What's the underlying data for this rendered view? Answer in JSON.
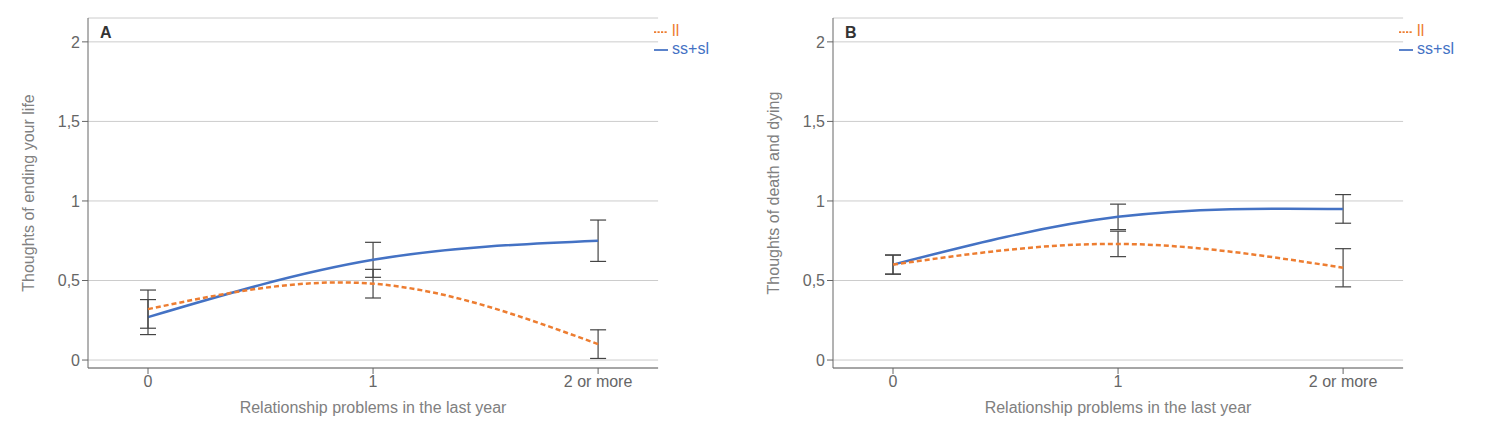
{
  "chart_data": [
    {
      "type": "line",
      "title": "A",
      "xlabel": "Relationship problems in the last year",
      "ylabel": "Thoughts of ending your life",
      "categories": [
        "0",
        "1",
        "2 or more"
      ],
      "ylim": [
        -0.05,
        2.15
      ],
      "yticks": [
        0,
        {
          "value": 0.5,
          "label": "0,5"
        },
        1,
        {
          "value": 1.5,
          "label": "1,5"
        },
        2
      ],
      "grid": true,
      "legend": "upper right",
      "series": [
        {
          "name": "ss+sl",
          "color": "#4472C4",
          "line_style": "solid",
          "values": [
            0.27,
            0.63,
            0.75
          ],
          "errors": [
            0.11,
            0.11,
            0.13
          ]
        },
        {
          "name": "ll",
          "color": "#ED7D31",
          "line_style": "dashed",
          "values": [
            0.32,
            0.48,
            0.1
          ],
          "errors": [
            0.12,
            0.09,
            0.09
          ]
        }
      ]
    },
    {
      "type": "line",
      "title": "B",
      "xlabel": "Relationship problems in the last year",
      "ylabel": "Thoughts of death and dying",
      "categories": [
        "0",
        "1",
        "2 or more"
      ],
      "ylim": [
        -0.05,
        2.15
      ],
      "yticks": [
        0,
        {
          "value": 0.5,
          "label": "0,5"
        },
        1,
        {
          "value": 1.5,
          "label": "1,5"
        },
        2
      ],
      "grid": true,
      "legend": "upper right",
      "series": [
        {
          "name": "ss+sl",
          "color": "#4472C4",
          "line_style": "solid",
          "values": [
            0.6,
            0.9,
            0.95
          ],
          "errors": [
            0.06,
            0.08,
            0.09
          ]
        },
        {
          "name": "ll",
          "color": "#ED7D31",
          "line_style": "dashed",
          "values": [
            0.6,
            0.73,
            0.58
          ],
          "errors": [
            0.06,
            0.08,
            0.12
          ]
        }
      ]
    }
  ]
}
